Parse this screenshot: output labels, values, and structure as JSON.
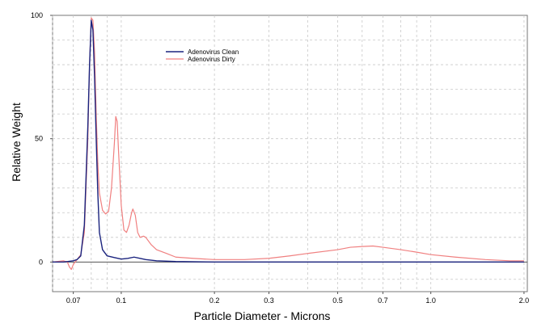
{
  "chart_data": {
    "type": "line",
    "title": "",
    "xlabel": "Particle Diameter  -  Microns",
    "ylabel": "Relative Weight",
    "x_scale": "log",
    "xlim": [
      0.06,
      2.05
    ],
    "ylim": [
      -12,
      100
    ],
    "grid": true,
    "legend_position": "top-center",
    "x_ticks": [
      {
        "value": 0.07,
        "label": "0.07"
      },
      {
        "value": 0.1,
        "label": "0.1"
      },
      {
        "value": 0.2,
        "label": "0.2"
      },
      {
        "value": 0.3,
        "label": "0.3"
      },
      {
        "value": 0.5,
        "label": "0.5"
      },
      {
        "value": 0.7,
        "label": "0.7"
      },
      {
        "value": 1.0,
        "label": "1.0"
      },
      {
        "value": 2.0,
        "label": "2.0"
      }
    ],
    "y_ticks": [
      {
        "value": 0,
        "label": "0"
      },
      {
        "value": 50,
        "label": "50"
      },
      {
        "value": 100,
        "label": "100"
      }
    ],
    "series": [
      {
        "name": "Adenovirus Clean",
        "color": "#1a237e",
        "points": [
          [
            0.06,
            0
          ],
          [
            0.065,
            0
          ],
          [
            0.068,
            0.3
          ],
          [
            0.07,
            0.5
          ],
          [
            0.072,
            1.0
          ],
          [
            0.074,
            2.5
          ],
          [
            0.076,
            15
          ],
          [
            0.078,
            55
          ],
          [
            0.079,
            80
          ],
          [
            0.08,
            98
          ],
          [
            0.081,
            94
          ],
          [
            0.082,
            75
          ],
          [
            0.083,
            50
          ],
          [
            0.084,
            28
          ],
          [
            0.085,
            12
          ],
          [
            0.087,
            5
          ],
          [
            0.09,
            2.5
          ],
          [
            0.095,
            1.8
          ],
          [
            0.1,
            1.2
          ],
          [
            0.105,
            1.5
          ],
          [
            0.11,
            2.0
          ],
          [
            0.115,
            1.5
          ],
          [
            0.12,
            1.0
          ],
          [
            0.13,
            0.5
          ],
          [
            0.15,
            0.2
          ],
          [
            0.2,
            0
          ],
          [
            0.5,
            0
          ],
          [
            1.0,
            0
          ],
          [
            2.0,
            0
          ]
        ]
      },
      {
        "name": "Adenovirus Dirty",
        "color": "#f08080",
        "points": [
          [
            0.06,
            0
          ],
          [
            0.065,
            0.5
          ],
          [
            0.067,
            0
          ],
          [
            0.068,
            -2
          ],
          [
            0.069,
            -3
          ],
          [
            0.07,
            -1
          ],
          [
            0.072,
            1
          ],
          [
            0.074,
            3
          ],
          [
            0.076,
            12
          ],
          [
            0.078,
            50
          ],
          [
            0.079,
            80
          ],
          [
            0.08,
            99
          ],
          [
            0.081,
            98
          ],
          [
            0.082,
            85
          ],
          [
            0.083,
            60
          ],
          [
            0.084,
            40
          ],
          [
            0.085,
            28
          ],
          [
            0.087,
            21
          ],
          [
            0.089,
            19.5
          ],
          [
            0.091,
            20.5
          ],
          [
            0.093,
            30
          ],
          [
            0.095,
            48
          ],
          [
            0.096,
            59
          ],
          [
            0.097,
            57
          ],
          [
            0.098,
            45
          ],
          [
            0.1,
            23
          ],
          [
            0.102,
            13
          ],
          [
            0.104,
            12
          ],
          [
            0.106,
            15
          ],
          [
            0.108,
            20
          ],
          [
            0.109,
            21.5
          ],
          [
            0.111,
            19
          ],
          [
            0.113,
            12
          ],
          [
            0.115,
            10
          ],
          [
            0.118,
            10.5
          ],
          [
            0.12,
            10
          ],
          [
            0.125,
            7
          ],
          [
            0.13,
            5
          ],
          [
            0.14,
            3.5
          ],
          [
            0.15,
            2
          ],
          [
            0.17,
            1.5
          ],
          [
            0.2,
            1
          ],
          [
            0.25,
            1
          ],
          [
            0.3,
            1.5
          ],
          [
            0.35,
            2.5
          ],
          [
            0.4,
            3.5
          ],
          [
            0.5,
            5
          ],
          [
            0.55,
            6
          ],
          [
            0.6,
            6.3
          ],
          [
            0.65,
            6.5
          ],
          [
            0.7,
            6
          ],
          [
            0.8,
            5
          ],
          [
            0.9,
            4
          ],
          [
            1.0,
            3
          ],
          [
            1.2,
            2
          ],
          [
            1.5,
            1
          ],
          [
            1.8,
            0.5
          ],
          [
            2.0,
            0.5
          ]
        ]
      }
    ]
  }
}
